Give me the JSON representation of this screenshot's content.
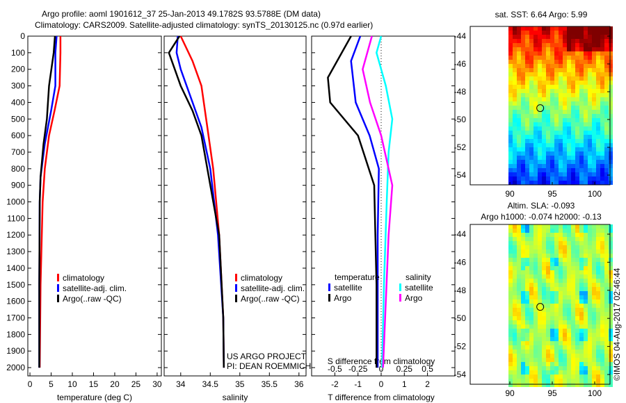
{
  "title_line1": "Argo profile: aoml 1901612_37 25-Jan-2013 49.1782S 93.5788E (DM data)",
  "title_line2": "Climatology: CARS2009. Satellite-adjusted climatology: synTS_20130125.nc (0.97d earlier)",
  "project": "US ARGO PROJECT",
  "pi": "PI: DEAN ROEMMICH",
  "copyright": "©IMOS 04-Aug-2017 02:46:44",
  "colors": {
    "clim": "#ff0000",
    "sat": "#0000ff",
    "argo": "#000000",
    "sal_sat": "#00ffff",
    "sal_argo": "#ff00ff"
  },
  "chart_data": [
    {
      "type": "line",
      "name": "temperature",
      "xlabel": "temperature (deg C)",
      "ylabel": "depth",
      "xlim": [
        -0.5,
        31
      ],
      "ylim": [
        2050,
        0
      ],
      "xticks": [
        0,
        5,
        10,
        15,
        20,
        25,
        30
      ],
      "yticks": [
        0,
        100,
        200,
        300,
        400,
        500,
        600,
        700,
        800,
        900,
        1000,
        1100,
        1200,
        1300,
        1400,
        1500,
        1600,
        1700,
        1800,
        1900,
        2000
      ],
      "legend": [
        "climatology",
        "satellite-adj. clim.",
        "Argo(..raw -QC)"
      ],
      "series": [
        {
          "name": "climatology",
          "depth": [
            0,
            100,
            300,
            450,
            600,
            800,
            1000,
            1500,
            2000
          ],
          "values": [
            7.2,
            7.2,
            7.0,
            5.8,
            4.5,
            3.5,
            3.0,
            2.5,
            2.3
          ]
        },
        {
          "name": "satellite-adj. clim.",
          "depth": [
            0,
            100,
            300,
            450,
            650,
            850,
            1000,
            1500,
            2000
          ],
          "values": [
            6.3,
            6.0,
            6.0,
            5.0,
            3.5,
            2.5,
            2.3,
            2.2,
            2.2
          ]
        },
        {
          "name": "Argo(..raw -QC)",
          "depth": [
            0,
            100,
            300,
            500,
            650,
            850,
            1000,
            1500,
            2000
          ],
          "values": [
            5.9,
            5.6,
            4.5,
            4.0,
            3.2,
            2.5,
            2.3,
            2.2,
            2.2
          ]
        }
      ]
    },
    {
      "type": "line",
      "name": "salinity",
      "xlabel": "salinity",
      "xlim": [
        33.72,
        36.12
      ],
      "ylim": [
        2050,
        0
      ],
      "xticks": [
        34,
        34.5,
        35,
        35.5,
        36
      ],
      "legend": [
        "climatology",
        "satellite-adj. clim.",
        "Argo(..raw -QC)"
      ],
      "series": [
        {
          "name": "climatology",
          "depth": [
            0,
            150,
            300,
            550,
            800,
            1200,
            1700,
            2000
          ],
          "values": [
            34.0,
            34.2,
            34.35,
            34.45,
            34.55,
            34.65,
            34.72,
            34.73
          ]
        },
        {
          "name": "satellite-adj. clim.",
          "depth": [
            0,
            100,
            200,
            350,
            550,
            800,
            1200,
            1700,
            2000
          ],
          "values": [
            33.95,
            33.93,
            34.0,
            34.15,
            34.35,
            34.5,
            34.63,
            34.72,
            34.73
          ]
        },
        {
          "name": "Argo(..raw -QC)",
          "depth": [
            0,
            100,
            300,
            450,
            600,
            800,
            1200,
            1700,
            2000
          ],
          "values": [
            33.98,
            33.8,
            34.0,
            34.2,
            34.35,
            34.45,
            34.65,
            34.72,
            34.73
          ]
        }
      ]
    },
    {
      "type": "line",
      "name": "difference",
      "xlabel": "T difference from climatology",
      "xlabel2": "S difference from climatology",
      "xlim": [
        -3,
        3
      ],
      "ylim": [
        2050,
        0
      ],
      "xticks": [
        -2,
        -1,
        0,
        1,
        2
      ],
      "xticks2": [
        "-0.5",
        "-0.25",
        "0",
        "0.25",
        "0.5"
      ],
      "legend_temp_title": "temperature",
      "legend_sal_title": "salinity",
      "legend": [
        "satellite",
        "Argo",
        "satellite",
        "Argo"
      ],
      "series": [
        {
          "name": "T satellite",
          "depth": [
            0,
            150,
            400,
            600,
            800,
            1200,
            2000
          ],
          "values": [
            -0.9,
            -1.3,
            -1.1,
            -0.5,
            -0.1,
            -0.15,
            -0.15
          ]
        },
        {
          "name": "T Argo",
          "depth": [
            0,
            250,
            400,
            600,
            900,
            1500,
            2000
          ],
          "values": [
            -1.3,
            -2.3,
            -2.2,
            -1.0,
            -0.3,
            -0.2,
            -0.2
          ]
        },
        {
          "name": "S satellite",
          "depth": [
            0,
            100,
            300,
            500,
            700,
            1000,
            1500,
            2000
          ],
          "values": [
            0.0,
            -0.05,
            0.05,
            0.12,
            0.08,
            0.06,
            0.03,
            0.01
          ]
        },
        {
          "name": "S Argo",
          "depth": [
            0,
            200,
            400,
            600,
            900,
            1200,
            2000
          ],
          "values": [
            -0.1,
            -0.2,
            -0.12,
            0.0,
            0.12,
            0.08,
            0.02
          ]
        }
      ]
    },
    {
      "type": "heatmap",
      "name": "sst_map",
      "title": "sat. SST: 6.64 Argo: 5.99",
      "xticks": [
        90,
        95,
        100
      ],
      "yticks": [
        -44,
        -46,
        -48,
        -50,
        -52,
        -54
      ],
      "xlim": [
        85,
        101
      ],
      "ylim": [
        -55.2,
        -43.3
      ],
      "marker": [
        93.58,
        -49.18
      ]
    },
    {
      "type": "heatmap",
      "name": "sla_map",
      "title": "Altim. SLA: -0.093",
      "title2": "Argo h1000: -0.074 h2000: -0.13",
      "xticks": [
        90,
        95,
        100
      ],
      "yticks": [
        -44,
        -46,
        -48,
        -50,
        -52,
        -54
      ],
      "xlim": [
        85,
        101
      ],
      "ylim": [
        -55.2,
        -43.3
      ],
      "marker": [
        93.58,
        -49.18
      ]
    }
  ]
}
